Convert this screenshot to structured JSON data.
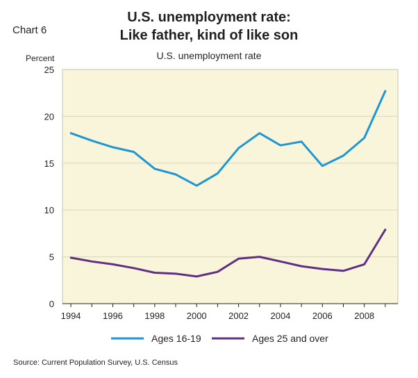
{
  "chart_label": "Chart 6",
  "chart_data": {
    "type": "line",
    "title": "U.S. unemployment rate:",
    "title_line2": "Like father, kind of like son",
    "subtitle": "U.S. unemployment rate",
    "ylabel": "Percent",
    "xlabel": "",
    "ylim": [
      0,
      25
    ],
    "xlim": [
      1993.6,
      2009.6
    ],
    "yticks": [
      0,
      5,
      10,
      15,
      20,
      25
    ],
    "xticks": [
      1994,
      1996,
      1998,
      2000,
      2002,
      2004,
      2006,
      2008
    ],
    "grid": true,
    "legend_position": "bottom",
    "x": [
      1994,
      1995,
      1996,
      1997,
      1998,
      1999,
      2000,
      2001,
      2002,
      2003,
      2004,
      2005,
      2006,
      2007,
      2008,
      2009
    ],
    "series": [
      {
        "name": "Ages 16-19",
        "color": "#1e96d2",
        "values": [
          18.2,
          17.4,
          16.7,
          16.2,
          14.4,
          13.8,
          12.6,
          13.9,
          16.6,
          18.2,
          16.9,
          17.3,
          14.7,
          15.8,
          17.7,
          22.7
        ]
      },
      {
        "name": "Ages 25 and over",
        "color": "#5e2f83",
        "values": [
          4.9,
          4.5,
          4.2,
          3.8,
          3.3,
          3.2,
          2.9,
          3.4,
          4.8,
          5.0,
          4.5,
          4.0,
          3.7,
          3.5,
          4.2,
          7.9
        ]
      }
    ],
    "plot_background": "#f9f5db"
  },
  "source": "Source: Current Population Survey, U.S. Census"
}
